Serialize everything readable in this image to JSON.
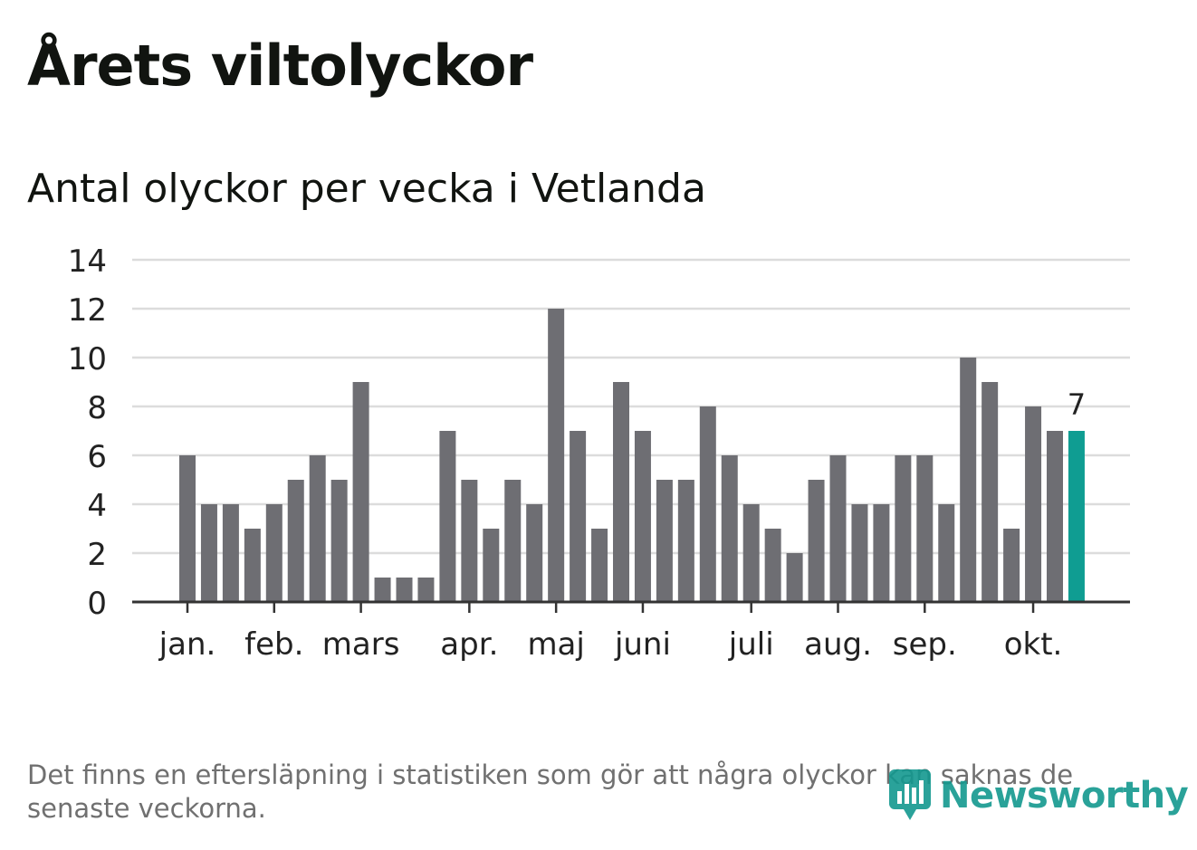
{
  "header": {
    "title": "Årets viltolyckor",
    "subtitle": "Antal olyckor per vecka i Vetlanda"
  },
  "footnote": "Det finns en eftersläpning i statistiken som gör att några olyckor kan saknas de senaste veckorna.",
  "brand": {
    "name": "Newsworthy"
  },
  "colors": {
    "bar": "#6e6e73",
    "highlight": "#0f9d92",
    "grid": "#dcdcdc",
    "axis": "#333333",
    "text": "#222222",
    "brand": "#13988f"
  },
  "chart_data": {
    "type": "bar",
    "title": "Antal olyckor per vecka i Vetlanda",
    "xlabel": "",
    "ylabel": "",
    "ylim": [
      0,
      14
    ],
    "yticks": [
      0,
      2,
      4,
      6,
      8,
      10,
      12,
      14
    ],
    "grid": true,
    "values": [
      6,
      4,
      4,
      3,
      4,
      5,
      6,
      5,
      9,
      1,
      1,
      1,
      7,
      5,
      3,
      5,
      4,
      12,
      7,
      3,
      9,
      7,
      5,
      5,
      8,
      6,
      4,
      3,
      2,
      5,
      6,
      4,
      4,
      6,
      6,
      4,
      10,
      9,
      3,
      8,
      7,
      7
    ],
    "highlight_index": 41,
    "highlight_label": "7",
    "month_ticks": [
      {
        "label": "jan.",
        "bar_index": 0
      },
      {
        "label": "feb.",
        "bar_index": 4
      },
      {
        "label": "mars",
        "bar_index": 8
      },
      {
        "label": "apr.",
        "bar_index": 13
      },
      {
        "label": "maj",
        "bar_index": 17
      },
      {
        "label": "juni",
        "bar_index": 21
      },
      {
        "label": "juli",
        "bar_index": 26
      },
      {
        "label": "aug.",
        "bar_index": 30
      },
      {
        "label": "sep.",
        "bar_index": 34
      },
      {
        "label": "okt.",
        "bar_index": 39
      }
    ]
  }
}
